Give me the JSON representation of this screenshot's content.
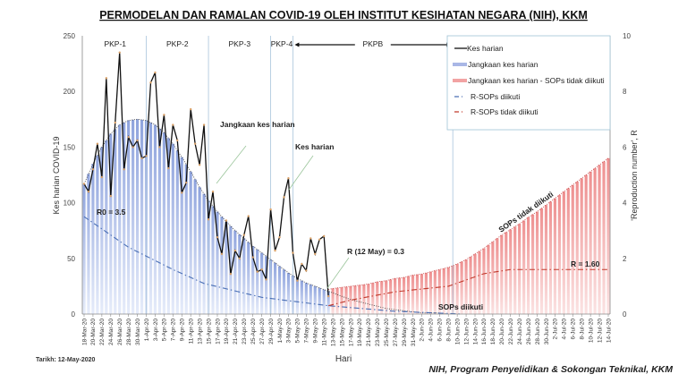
{
  "chart_data": {
    "type": "bar",
    "title": "PERMODELAN DAN RAMALAN COVID-19 OLEH INSTITUT KESIHATAN NEGARA (NIH), KKM",
    "xlabel": "Hari",
    "ylabel": "Kes harian COVID-19",
    "y2label": "'Reproduction number', R",
    "ylim": [
      0,
      250
    ],
    "yticks": [
      0,
      50,
      100,
      150,
      200,
      250
    ],
    "y2lim": [
      0,
      10
    ],
    "y2ticks": [
      0,
      2,
      4,
      6,
      8,
      10
    ],
    "grid": false,
    "legend_placement": "top-right",
    "xtick_labels": [
      "18-Mar-20",
      "20-Mar-20",
      "22-Mar-20",
      "24-Mar-20",
      "26-Mar-20",
      "28-Mar-20",
      "30-Mar-20",
      "1-Apr-20",
      "3-Apr-20",
      "5-Apr-20",
      "7-Apr-20",
      "9-Apr-20",
      "11-Apr-20",
      "13-Apr-20",
      "15-Apr-20",
      "17-Apr-20",
      "19-Apr-20",
      "21-Apr-20",
      "23-Apr-20",
      "25-Apr-20",
      "27-Apr-20",
      "29-Apr-20",
      "1-May-20",
      "3-May-20",
      "5-May-20",
      "7-May-20",
      "9-May-20",
      "11-May-20",
      "13-May-20",
      "15-May-20",
      "17-May-20",
      "19-May-20",
      "21-May-20",
      "23-May-20",
      "25-May-20",
      "27-May-20",
      "29-May-20",
      "31-May-20",
      "2-Jun-20",
      "4-Jun-20",
      "6-Jun-20",
      "8-Jun-20",
      "10-Jun-20",
      "12-Jun-20",
      "14-Jun-20",
      "16-Jun-20",
      "18-Jun-20",
      "20-Jun-20",
      "22-Jun-20",
      "24-Jun-20",
      "26-Jun-20",
      "28-Jun-20",
      "30-Jun-20",
      "2-Jul-20",
      "4-Jul-20",
      "6-Jul-20",
      "8-Jul-20",
      "10-Jul-20",
      "12-Jul-20",
      "14-Jul-20"
    ],
    "series": [
      {
        "name": "Kes harian",
        "kind": "line-markers",
        "color": "#111111",
        "marker_color": "#d9a066",
        "x": [
          "18-Mar-20",
          "19-Mar-20",
          "20-Mar-20",
          "21-Mar-20",
          "22-Mar-20",
          "23-Mar-20",
          "24-Mar-20",
          "25-Mar-20",
          "26-Mar-20",
          "27-Mar-20",
          "28-Mar-20",
          "29-Mar-20",
          "30-Mar-20",
          "31-Mar-20",
          "1-Apr-20",
          "2-Apr-20",
          "3-Apr-20",
          "4-Apr-20",
          "5-Apr-20",
          "6-Apr-20",
          "7-Apr-20",
          "8-Apr-20",
          "9-Apr-20",
          "10-Apr-20",
          "11-Apr-20",
          "12-Apr-20",
          "13-Apr-20",
          "14-Apr-20",
          "15-Apr-20",
          "16-Apr-20",
          "17-Apr-20",
          "18-Apr-20",
          "19-Apr-20",
          "20-Apr-20",
          "21-Apr-20",
          "22-Apr-20",
          "23-Apr-20",
          "24-Apr-20",
          "25-Apr-20",
          "26-Apr-20",
          "27-Apr-20",
          "28-Apr-20",
          "29-Apr-20",
          "30-Apr-20",
          "1-May-20",
          "2-May-20",
          "3-May-20",
          "4-May-20",
          "5-May-20",
          "6-May-20",
          "7-May-20",
          "8-May-20",
          "9-May-20",
          "10-May-20",
          "11-May-20",
          "12-May-20"
        ],
        "y": [
          117,
          110,
          130,
          153,
          123,
          212,
          106,
          172,
          235,
          130,
          159,
          150,
          156,
          140,
          142,
          208,
          217,
          150,
          179,
          131,
          170,
          156,
          109,
          118,
          184,
          153,
          134,
          170,
          85,
          110,
          69,
          54,
          84,
          36,
          57,
          50,
          71,
          88,
          51,
          38,
          40,
          31,
          94,
          57,
          69,
          105,
          122,
          55,
          30,
          45,
          39,
          68,
          54,
          67,
          70,
          16
        ]
      },
      {
        "name": "Jangkaan kes harian",
        "kind": "bars-envelope",
        "color": "#8ea3dd",
        "bars_until": "12-May-20",
        "x": [
          "18-Mar-20",
          "20-Mar-20",
          "22-Mar-20",
          "24-Mar-20",
          "26-Mar-20",
          "28-Mar-20",
          "30-Mar-20",
          "1-Apr-20",
          "3-Apr-20",
          "5-Apr-20",
          "7-Apr-20",
          "9-Apr-20",
          "11-Apr-20",
          "13-Apr-20",
          "15-Apr-20",
          "17-Apr-20",
          "19-Apr-20",
          "21-Apr-20",
          "23-Apr-20",
          "25-Apr-20",
          "27-Apr-20",
          "29-Apr-20",
          "1-May-20",
          "3-May-20",
          "5-May-20",
          "7-May-20",
          "9-May-20",
          "11-May-20",
          "13-May-20",
          "15-May-20",
          "17-May-20",
          "19-May-20",
          "21-May-20",
          "23-May-20",
          "25-May-20",
          "27-May-20",
          "29-May-20",
          "31-May-20",
          "2-Jun-20",
          "4-Jun-20",
          "6-Jun-20",
          "8-Jun-20"
        ],
        "y": [
          117,
          135,
          150,
          162,
          170,
          174,
          175,
          174,
          170,
          163,
          153,
          141,
          128,
          114,
          102,
          92,
          83,
          75,
          68,
          61,
          55,
          49,
          43,
          37,
          32,
          28,
          25,
          22,
          19,
          16,
          13,
          11,
          9,
          7,
          5,
          4,
          3,
          2,
          1,
          1,
          1,
          0
        ]
      },
      {
        "name": "Jangkaan kes harian - SOPs tidak diikuti",
        "kind": "bars-envelope",
        "color": "#ee8f8f",
        "x": [
          "12-May-20",
          "13-May-20",
          "15-May-20",
          "17-May-20",
          "19-May-20",
          "21-May-20",
          "23-May-20",
          "25-May-20",
          "27-May-20",
          "29-May-20",
          "31-May-20",
          "2-Jun-20",
          "4-Jun-20",
          "6-Jun-20",
          "8-Jun-20",
          "10-Jun-20",
          "12-Jun-20",
          "14-Jun-20",
          "16-Jun-20",
          "18-Jun-20",
          "20-Jun-20",
          "22-Jun-20",
          "24-Jun-20",
          "26-Jun-20",
          "28-Jun-20",
          "30-Jun-20",
          "2-Jul-20",
          "4-Jul-20",
          "6-Jul-20",
          "8-Jul-20",
          "10-Jul-20",
          "12-Jul-20",
          "14-Jul-20"
        ],
        "y": [
          22,
          23,
          24,
          25,
          26,
          27,
          29,
          30,
          32,
          33,
          35,
          36,
          38,
          40,
          42,
          45,
          49,
          54,
          59,
          65,
          71,
          76,
          81,
          87,
          92,
          98,
          104,
          110,
          116,
          122,
          128,
          134,
          140
        ]
      },
      {
        "name": "R-SOPs diikuti",
        "kind": "dashdot-secondary",
        "color": "#4a6fb5",
        "x": [
          "18-Mar-20",
          "28-Mar-20",
          "7-Apr-20",
          "14-Apr-20",
          "27-Apr-20",
          "12-May-20",
          "27-May-20",
          "11-Jun-20"
        ],
        "y": [
          3.5,
          2.4,
          1.6,
          1.1,
          0.6,
          0.3,
          0.1,
          0.0
        ]
      },
      {
        "name": "R-SOPs tidak diikuti",
        "kind": "dashdot-secondary",
        "color": "#c0392b",
        "x": [
          "12-May-20",
          "17-May-20",
          "27-May-20",
          "8-Jun-20",
          "16-Jun-20",
          "22-Jun-20",
          "14-Jul-20"
        ],
        "y": [
          0.3,
          0.5,
          0.8,
          1.0,
          1.45,
          1.6,
          1.6
        ]
      }
    ],
    "phases": [
      {
        "label": "PKP-1",
        "start": "18-Mar-20",
        "end": "1-Apr-20"
      },
      {
        "label": "PKP-2",
        "start": "1-Apr-20",
        "end": "15-Apr-20"
      },
      {
        "label": "PKP-3",
        "start": "15-Apr-20",
        "end": "29-Apr-20"
      },
      {
        "label": "PKP-4",
        "start": "29-Apr-20",
        "end": "4-May-20"
      },
      {
        "label": "PKPB",
        "start": "4-May-20",
        "end": "9-Jun-20"
      }
    ],
    "annotations": {
      "r0": "R0 = 3.5",
      "r_may12": "R (12 May) = 0.3",
      "jangkaan": "Jangkaan kes harian",
      "kes": "Kes harian",
      "sops_tidak": "SOPs tidak diikuti",
      "r160": "R = 1.60",
      "sops_diikuti": "SOPs diikuti"
    }
  },
  "footer": {
    "date_note": "Tarikh: 12-May-2020",
    "credit": "NIH, Program Penyelidikan & Sokongan Teknikal, KKM"
  }
}
